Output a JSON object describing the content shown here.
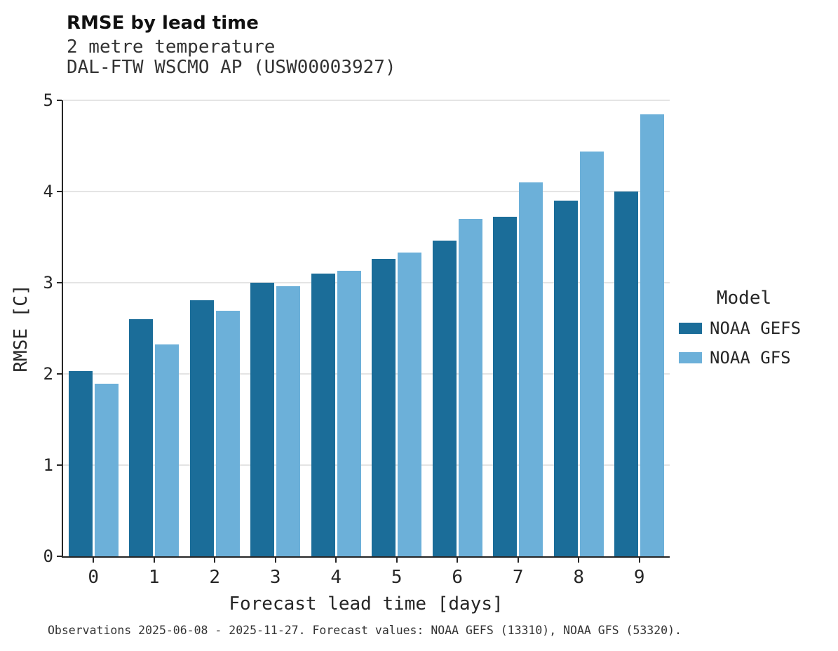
{
  "header": {
    "title": "RMSE by lead time",
    "subtitle1": "2 metre temperature",
    "subtitle2": "DAL-FTW WSCMO AP (USW00003927)"
  },
  "chart_data": {
    "type": "bar",
    "title": "RMSE by lead time",
    "subtitle": "2 metre temperature — DAL-FTW WSCMO AP (USW00003927)",
    "categories": [
      "0",
      "1",
      "2",
      "3",
      "4",
      "5",
      "6",
      "7",
      "8",
      "9"
    ],
    "series": [
      {
        "name": "NOAA GEFS",
        "color": "#1b6d99",
        "values": [
          2.03,
          2.6,
          2.81,
          3.0,
          3.1,
          3.26,
          3.46,
          3.72,
          3.9,
          4.0
        ]
      },
      {
        "name": "NOAA GFS",
        "color": "#6cb0d9",
        "values": [
          1.89,
          2.32,
          2.69,
          2.96,
          3.13,
          3.33,
          3.7,
          4.1,
          4.44,
          4.85
        ]
      }
    ],
    "xlabel": "Forecast lead time [days]",
    "ylabel": "RMSE [C]",
    "ylim": [
      0,
      5
    ],
    "yticks": [
      0,
      1,
      2,
      3,
      4,
      5
    ],
    "grid": true,
    "legend_title": "Model",
    "legend_position": "right"
  },
  "footer": {
    "caption": "Observations 2025-06-08 - 2025-11-27. Forecast values: NOAA GEFS (13310), NOAA GFS (53320)."
  }
}
